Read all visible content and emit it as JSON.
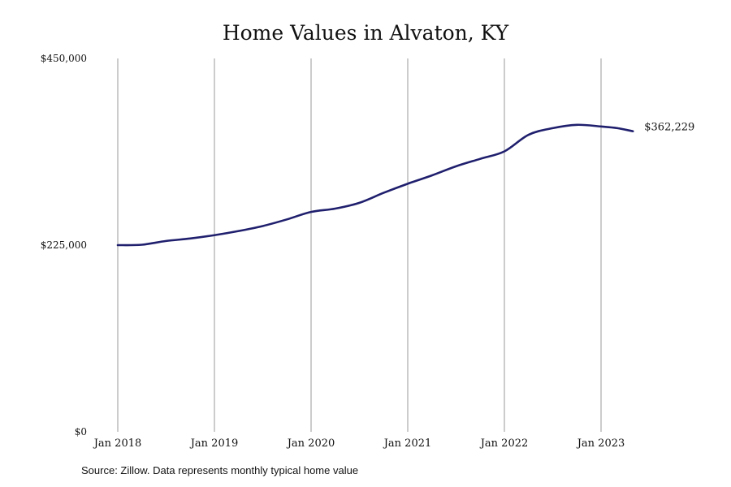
{
  "chart_data": {
    "type": "line",
    "title": "Home Values in Alvaton, KY",
    "xlabel": "",
    "ylabel": "",
    "ylim": [
      0,
      450000
    ],
    "y_ticks": [
      {
        "value": 0,
        "label": "$0"
      },
      {
        "value": 225000,
        "label": "$225,000"
      },
      {
        "value": 450000,
        "label": "$450,000"
      }
    ],
    "x_ticks": [
      {
        "value": 2018.0,
        "label": "Jan 2018"
      },
      {
        "value": 2019.0,
        "label": "Jan 2019"
      },
      {
        "value": 2020.0,
        "label": "Jan 2020"
      },
      {
        "value": 2021.0,
        "label": "Jan 2021"
      },
      {
        "value": 2022.0,
        "label": "Jan 2022"
      },
      {
        "value": 2023.0,
        "label": "Jan 2023"
      }
    ],
    "xlim": [
      2018.0,
      2023.33
    ],
    "grid": {
      "vertical": true,
      "horizontal": false
    },
    "series": [
      {
        "color": "#1f1f6e",
        "x": [
          2018.0,
          2018.25,
          2018.5,
          2018.75,
          2019.0,
          2019.25,
          2019.5,
          2019.75,
          2020.0,
          2020.25,
          2020.5,
          2020.75,
          2021.0,
          2021.25,
          2021.5,
          2021.75,
          2022.0,
          2022.25,
          2022.5,
          2022.75,
          2023.0,
          2023.17,
          2023.33
        ],
        "values": [
          225000,
          225500,
          230000,
          233000,
          237000,
          242000,
          248000,
          256000,
          265000,
          269000,
          276000,
          288000,
          299000,
          309000,
          320000,
          329000,
          338000,
          358000,
          366000,
          370000,
          368000,
          366000,
          362229
        ]
      }
    ],
    "end_label": "$362,229",
    "source_note": "Source: Zillow. Data represents monthly typical home value"
  }
}
